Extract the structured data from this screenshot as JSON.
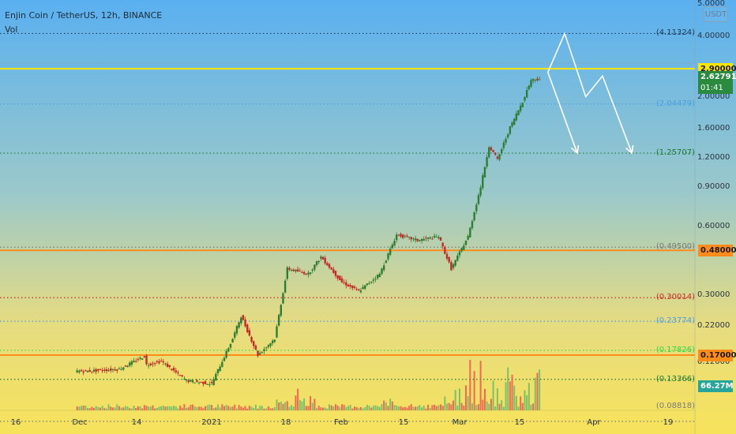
{
  "header": {
    "symbol_title": "Enjin Coin / TetherUS, 12h, BINANCE",
    "volume_label": "Vol",
    "currency_button": "USDT"
  },
  "colors": {
    "sky_top": "#5ab0f0",
    "sand_bottom": "#f7e35a",
    "candle_up": "#2e7d32",
    "candle_down": "#c62828",
    "volume_up": "#66bb6a",
    "volume_down": "#ef5350",
    "resistance_yellow": "#ffe600",
    "support_orange": "#ff8c1a",
    "current_price_green": "#2a8a3e"
  },
  "price_axis": {
    "ticks": [
      "5.0000",
      "4.00000",
      "2.00000",
      "1.60000",
      "1.20000",
      "0.90000",
      "0.60000",
      "0.30000",
      "0.22000",
      "0.17000",
      "0.12000"
    ],
    "current_price": "2.62791",
    "countdown": "01:41",
    "volume_value": "66.27M"
  },
  "levels": {
    "fib": [
      {
        "value": "(4.11324)",
        "price": 4.11324,
        "color": "#1f3a5f"
      },
      {
        "value": "(2.04479)",
        "price": 2.04479,
        "color": "#4a9ee0"
      },
      {
        "value": "(1.25707)",
        "price": 1.25707,
        "color": "#1e7a34"
      },
      {
        "value": "(0.49500)",
        "price": 0.495,
        "color": "#7a7a7a"
      },
      {
        "value": "(0.30014)",
        "price": 0.30014,
        "color": "#c62828"
      },
      {
        "value": "(0.23774)",
        "price": 0.23774,
        "color": "#4a9ee0"
      },
      {
        "value": "(0.17826)",
        "price": 0.17826,
        "color": "#2bd64a"
      },
      {
        "value": "(0.13366)",
        "price": 0.13366,
        "color": "#1e7a34"
      },
      {
        "value": "(0.08818)",
        "price": 0.08818,
        "color": "#7a7a7a"
      }
    ],
    "horizontal": [
      {
        "value": "2.90000",
        "price": 2.9,
        "color": "#ffe600"
      },
      {
        "value": "0.48000",
        "price": 0.48,
        "color": "#ff8c1a"
      },
      {
        "value": "0.17000",
        "price": 0.17,
        "color": "#ff8c1a"
      }
    ]
  },
  "time_axis": {
    "labels": [
      "16",
      "Dec",
      "14",
      "2021",
      "18",
      "Feb",
      "15",
      "Mar",
      "15",
      "Apr",
      "19"
    ]
  },
  "chart_data": {
    "type": "candlestick",
    "scale": "log",
    "timeframe": "12h",
    "x": [
      "Nov 16",
      "Dec 1",
      "Dec 14",
      "Jan 1",
      "Jan 18",
      "Feb 1",
      "Feb 15",
      "Mar 1",
      "Mar 15",
      "Apr 1",
      "Apr 19"
    ],
    "close_path": [
      [
        "Nov 16",
        0.145
      ],
      [
        "Nov 24",
        0.148
      ],
      [
        "Nov 30",
        0.168
      ],
      [
        "Dec 6",
        0.142
      ],
      [
        "Dec 12",
        0.148
      ],
      [
        "Dec 20",
        0.16
      ],
      [
        "Dec 26",
        0.132
      ],
      [
        "Jan 1",
        0.128
      ],
      [
        "Jan 6",
        0.2
      ],
      [
        "Jan 8",
        0.25
      ],
      [
        "Jan 12",
        0.17
      ],
      [
        "Jan 16",
        0.2
      ],
      [
        "Jan 19",
        0.4
      ],
      [
        "Jan 24",
        0.38
      ],
      [
        "Jan 27",
        0.45
      ],
      [
        "Feb 1",
        0.35
      ],
      [
        "Feb 5",
        0.32
      ],
      [
        "Feb 10",
        0.38
      ],
      [
        "Feb 14",
        0.56
      ],
      [
        "Feb 19",
        0.53
      ],
      [
        "Feb 24",
        0.55
      ],
      [
        "Feb 27",
        0.4
      ],
      [
        "Mar 3",
        0.55
      ],
      [
        "Mar 6",
        0.9
      ],
      [
        "Mar 8",
        1.35
      ],
      [
        "Mar 10",
        1.18
      ],
      [
        "Mar 13",
        1.62
      ],
      [
        "Mar 16",
        2.1
      ],
      [
        "Mar 18",
        2.6
      ],
      [
        "Mar 20",
        2.62791
      ]
    ],
    "projection": [
      {
        "path": [
          [
            "Mar 22",
            2.8
          ],
          [
            "Mar 26",
            4.11324
          ],
          [
            "Mar 31",
            2.2
          ],
          [
            "Apr 4",
            2.7
          ],
          [
            "Apr 11",
            1.25707
          ]
        ]
      },
      {
        "path": [
          [
            "Mar 22",
            2.8
          ],
          [
            "Mar 29",
            1.25707
          ]
        ]
      }
    ],
    "ylim": [
      0.1,
      5.0
    ],
    "grid": false,
    "legend": "none"
  }
}
